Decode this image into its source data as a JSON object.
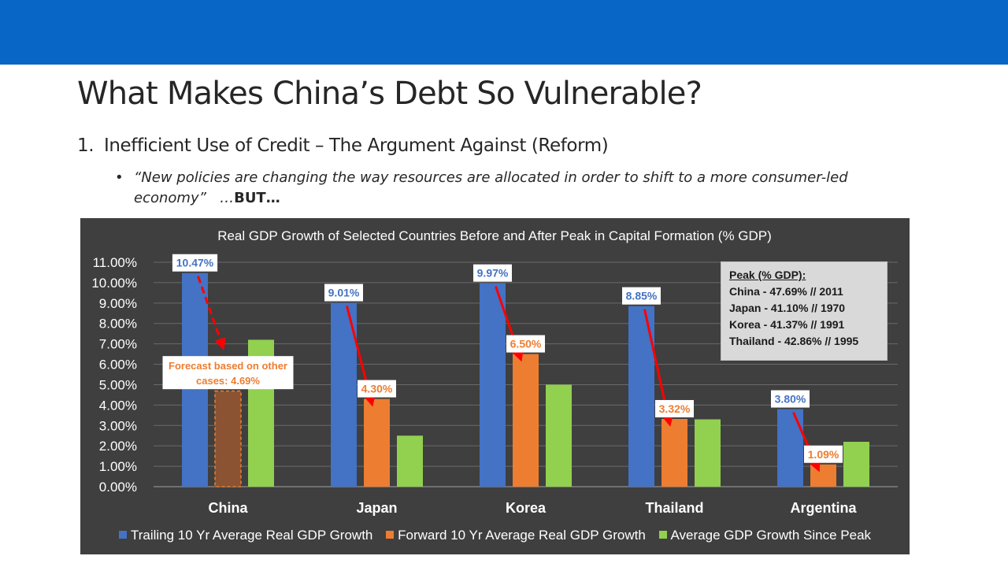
{
  "slide": {
    "title": "What Makes China’s Debt So Vulnerable?",
    "point_number": "1.",
    "point_text": "Inefficient Use of Credit – The Argument Against (Reform)",
    "bullet": "•",
    "quote": "“New policies are changing the way resources are allocated in order to shift to a more consumer-led economy”",
    "quote_suffix": "…",
    "quote_emphasis": "BUT…"
  },
  "peak_box": {
    "title": "Peak (% GDP):",
    "lines": [
      "China - 47.69% // 2011",
      "Japan - 41.10% // 1970",
      "Korea - 41.37% // 1991",
      "Thailand - 42.86% // 1995"
    ]
  },
  "chart_data": {
    "type": "bar",
    "title": "Real GDP Growth of Selected Countries Before and After Peak in Capital Formation (% GDP)",
    "categories": [
      "China",
      "Japan",
      "Korea",
      "Thailand",
      "Argentina"
    ],
    "series": [
      {
        "name": "Trailing 10 Yr Average Real GDP Growth",
        "color": "#4472c4",
        "values": [
          10.47,
          9.01,
          9.97,
          8.85,
          3.8
        ],
        "data_labels": [
          "10.47%",
          "9.01%",
          "9.97%",
          "8.85%",
          "3.80%"
        ]
      },
      {
        "name": "Forward 10 Yr Average Real GDP Growth",
        "color": "#ed7d31",
        "values": [
          4.69,
          4.3,
          6.5,
          3.32,
          1.09
        ],
        "data_labels": [
          "",
          "4.30%",
          "6.50%",
          "3.32%",
          "1.09%"
        ]
      },
      {
        "name": "Average GDP Growth Since Peak",
        "color": "#92d050",
        "values": [
          7.2,
          2.5,
          5.0,
          3.3,
          2.2
        ]
      }
    ],
    "forecast": {
      "category": "China",
      "value": 4.69,
      "label_line1": "Forecast based on other",
      "label_line2": "cases: 4.69%",
      "fill_color": "#8b5331",
      "border_color": "#ed7d31"
    },
    "ylim": [
      0,
      11
    ],
    "yticks": [
      "0.00%",
      "1.00%",
      "2.00%",
      "3.00%",
      "4.00%",
      "5.00%",
      "6.00%",
      "7.00%",
      "8.00%",
      "9.00%",
      "10.00%",
      "11.00%"
    ],
    "xlabel": "",
    "ylabel": "",
    "grid": true,
    "legend_position": "bottom",
    "arrow_color": "#ff0000",
    "background": "#3f3f3f"
  }
}
